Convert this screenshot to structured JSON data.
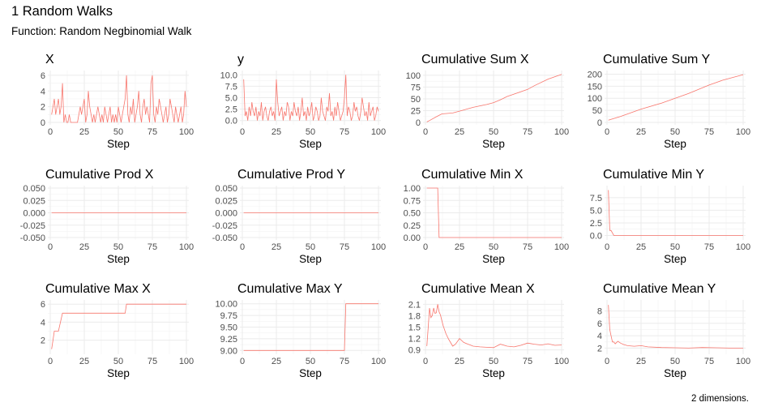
{
  "page": {
    "title": "1 Random Walks",
    "subtitle": "Function: Random Negbinomial Walk",
    "caption": "2 dimensions."
  },
  "chart_data": [
    {
      "type": "line",
      "title": "X",
      "xlabel": "Step",
      "ylabel": "",
      "xlim": [
        0,
        100
      ],
      "ylim": [
        0,
        6.3
      ],
      "xticks": [
        0,
        25,
        50,
        75,
        100
      ],
      "yticks": [
        0,
        2,
        4,
        6
      ],
      "ytick_labels": [
        "0",
        "2",
        "4",
        "6"
      ],
      "color": "#f8766d",
      "grid": true,
      "series": [
        {
          "x": [
            1,
            2,
            3,
            4,
            5,
            6,
            7,
            8,
            9,
            10,
            11,
            12,
            13,
            14,
            15,
            16,
            17,
            18,
            19,
            20,
            21,
            22,
            23,
            24,
            25,
            26,
            27,
            28,
            29,
            30,
            31,
            32,
            33,
            34,
            35,
            36,
            37,
            38,
            39,
            40,
            41,
            42,
            43,
            44,
            45,
            46,
            47,
            48,
            49,
            50,
            51,
            52,
            53,
            54,
            55,
            56,
            57,
            58,
            59,
            60,
            61,
            62,
            63,
            64,
            65,
            66,
            67,
            68,
            69,
            70,
            71,
            72,
            73,
            74,
            75,
            76,
            77,
            78,
            79,
            80,
            81,
            82,
            83,
            84,
            85,
            86,
            87,
            88,
            89,
            90,
            91,
            92,
            93,
            94,
            95,
            96,
            97,
            98,
            99,
            100
          ],
          "y": [
            1,
            2,
            3,
            1,
            2,
            3,
            1,
            2,
            5,
            0,
            1,
            0,
            0,
            1,
            0,
            0,
            0,
            0,
            0,
            0,
            1,
            2,
            1,
            2,
            3,
            0,
            1,
            4,
            2,
            1,
            0,
            1,
            0,
            1,
            2,
            1,
            0,
            1,
            0,
            2,
            1,
            0,
            1,
            2,
            0,
            1,
            0,
            1,
            0,
            2,
            1,
            0,
            1,
            2,
            3,
            6,
            1,
            0,
            2,
            1,
            3,
            0,
            1,
            2,
            4,
            1,
            0,
            2,
            3,
            1,
            2,
            1,
            0,
            5,
            6,
            1,
            0,
            2,
            1,
            3,
            2,
            1,
            0,
            1,
            2,
            0,
            1,
            3,
            2,
            1,
            0,
            2,
            1,
            0,
            1,
            2,
            0,
            1,
            4,
            2
          ]
        }
      ]
    },
    {
      "type": "line",
      "title": "y",
      "xlabel": "Step",
      "ylabel": "",
      "xlim": [
        0,
        100
      ],
      "ylim": [
        -0.4,
        10.4
      ],
      "xticks": [
        0,
        25,
        50,
        75,
        100
      ],
      "yticks": [
        0,
        2.5,
        5,
        7.5,
        10
      ],
      "ytick_labels": [
        "0.0",
        "2.5",
        "5.0",
        "7.5",
        "10.0"
      ],
      "color": "#f8766d",
      "grid": true,
      "series": [
        {
          "x": [
            1,
            2,
            3,
            4,
            5,
            6,
            7,
            8,
            9,
            10,
            11,
            12,
            13,
            14,
            15,
            16,
            17,
            18,
            19,
            20,
            21,
            22,
            23,
            24,
            25,
            26,
            27,
            28,
            29,
            30,
            31,
            32,
            33,
            34,
            35,
            36,
            37,
            38,
            39,
            40,
            41,
            42,
            43,
            44,
            45,
            46,
            47,
            48,
            49,
            50,
            51,
            52,
            53,
            54,
            55,
            56,
            57,
            58,
            59,
            60,
            61,
            62,
            63,
            64,
            65,
            66,
            67,
            68,
            69,
            70,
            71,
            72,
            73,
            74,
            75,
            76,
            77,
            78,
            79,
            80,
            81,
            82,
            83,
            84,
            85,
            86,
            87,
            88,
            89,
            90,
            91,
            92,
            93,
            94,
            95,
            96,
            97,
            98,
            99,
            100
          ],
          "y": [
            9,
            1,
            2,
            0,
            3,
            1,
            4,
            2,
            1,
            3,
            0,
            2,
            1,
            4,
            0,
            2,
            3,
            1,
            0,
            2,
            3,
            1,
            2,
            0,
            9,
            4,
            1,
            2,
            3,
            0,
            2,
            1,
            4,
            3,
            0,
            2,
            1,
            4,
            2,
            1,
            3,
            0,
            2,
            5,
            1,
            2,
            0,
            3,
            1,
            2,
            4,
            0,
            1,
            3,
            2,
            0,
            1,
            5,
            2,
            1,
            0,
            3,
            2,
            6,
            1,
            2,
            0,
            3,
            1,
            4,
            2,
            0,
            1,
            2,
            5,
            10,
            1,
            3,
            2,
            0,
            1,
            4,
            2,
            3,
            1,
            0,
            2,
            5,
            3,
            1,
            2,
            0,
            4,
            1,
            2,
            3,
            0,
            1,
            3,
            2
          ]
        }
      ]
    },
    {
      "type": "line",
      "title": "Cumulative Sum X",
      "xlabel": "Step",
      "ylabel": "",
      "xlim": [
        0,
        100
      ],
      "ylim": [
        0,
        105
      ],
      "xticks": [
        0,
        25,
        50,
        75,
        100
      ],
      "yticks": [
        0,
        25,
        50,
        75,
        100
      ],
      "ytick_labels": [
        "0",
        "25",
        "50",
        "75",
        "100"
      ],
      "color": "#f8766d",
      "grid": true,
      "series": [
        {
          "x": [
            1,
            3,
            8,
            12,
            20,
            25,
            35,
            45,
            50,
            55,
            60,
            65,
            75,
            80,
            90,
            100
          ],
          "y": [
            1,
            4,
            12,
            18,
            20,
            24,
            32,
            38,
            42,
            48,
            55,
            60,
            70,
            78,
            92,
            102
          ]
        }
      ]
    },
    {
      "type": "line",
      "title": "Cumulative Sum Y",
      "xlabel": "Step",
      "ylabel": "",
      "xlim": [
        0,
        100
      ],
      "ylim": [
        0,
        205
      ],
      "xticks": [
        0,
        25,
        50,
        75,
        100
      ],
      "yticks": [
        0,
        50,
        100,
        150,
        200
      ],
      "ytick_labels": [
        "0",
        "50",
        "100",
        "150",
        "200"
      ],
      "color": "#f8766d",
      "grid": true,
      "series": [
        {
          "x": [
            1,
            10,
            25,
            40,
            50,
            60,
            75,
            85,
            100
          ],
          "y": [
            9,
            25,
            55,
            80,
            100,
            120,
            155,
            175,
            198
          ]
        }
      ]
    },
    {
      "type": "line",
      "title": "Cumulative Prod X",
      "xlabel": "Step",
      "ylabel": "",
      "xlim": [
        0,
        100
      ],
      "ylim": [
        -0.05,
        0.05
      ],
      "xticks": [
        0,
        25,
        50,
        75,
        100
      ],
      "yticks": [
        -0.05,
        -0.025,
        0,
        0.025,
        0.05
      ],
      "ytick_labels": [
        "-0.050",
        "-0.025",
        "0.000",
        "0.025",
        "0.050"
      ],
      "color": "#f8766d",
      "grid": true,
      "series": [
        {
          "x": [
            1,
            100
          ],
          "y": [
            0,
            0
          ]
        }
      ]
    },
    {
      "type": "line",
      "title": "Cumulative Prod Y",
      "xlabel": "Step",
      "ylabel": "",
      "xlim": [
        0,
        100
      ],
      "ylim": [
        -0.05,
        0.05
      ],
      "xticks": [
        0,
        25,
        50,
        75,
        100
      ],
      "yticks": [
        -0.05,
        -0.025,
        0,
        0.025,
        0.05
      ],
      "ytick_labels": [
        "-0.050",
        "-0.025",
        "0.000",
        "0.025",
        "0.050"
      ],
      "color": "#f8766d",
      "grid": true,
      "series": [
        {
          "x": [
            1,
            100
          ],
          "y": [
            0,
            0
          ]
        }
      ]
    },
    {
      "type": "line",
      "title": "Cumulative Min X",
      "xlabel": "Step",
      "ylabel": "",
      "xlim": [
        0,
        100
      ],
      "ylim": [
        0,
        1
      ],
      "xticks": [
        0,
        25,
        50,
        75,
        100
      ],
      "yticks": [
        0,
        0.25,
        0.5,
        0.75,
        1
      ],
      "ytick_labels": [
        "0.00",
        "0.25",
        "0.50",
        "0.75",
        "1.00"
      ],
      "color": "#f8766d",
      "grid": true,
      "series": [
        {
          "x": [
            1,
            9,
            10,
            100
          ],
          "y": [
            1,
            1,
            0,
            0
          ]
        }
      ]
    },
    {
      "type": "line",
      "title": "Cumulative Min Y",
      "xlabel": "Step",
      "ylabel": "",
      "xlim": [
        0,
        100
      ],
      "ylim": [
        -0.4,
        9.4
      ],
      "xticks": [
        0,
        25,
        50,
        75,
        100
      ],
      "yticks": [
        0,
        2.5,
        5,
        7.5
      ],
      "ytick_labels": [
        "0.0",
        "2.5",
        "5.0",
        "7.5"
      ],
      "color": "#f8766d",
      "grid": true,
      "series": [
        {
          "x": [
            1,
            2,
            3,
            5,
            100
          ],
          "y": [
            9,
            1,
            1,
            0,
            0
          ]
        }
      ]
    },
    {
      "type": "line",
      "title": "Cumulative Max X",
      "xlabel": "Step",
      "ylabel": "",
      "xlim": [
        0,
        100
      ],
      "ylim": [
        0.7,
        6.2
      ],
      "xticks": [
        0,
        25,
        50,
        75,
        100
      ],
      "yticks": [
        2,
        4,
        6
      ],
      "ytick_labels": [
        "2",
        "4",
        "6"
      ],
      "color": "#f8766d",
      "grid": true,
      "series": [
        {
          "x": [
            1,
            2,
            3,
            5,
            6,
            9,
            10,
            55,
            56,
            100
          ],
          "y": [
            1,
            2,
            3,
            3,
            3,
            5,
            5,
            5,
            6,
            6
          ]
        }
      ]
    },
    {
      "type": "line",
      "title": "Cumulative Max Y",
      "xlabel": "Step",
      "ylabel": "",
      "xlim": [
        0,
        100
      ],
      "ylim": [
        8.97,
        10.03
      ],
      "xticks": [
        0,
        25,
        50,
        75,
        100
      ],
      "yticks": [
        9,
        9.25,
        9.5,
        9.75,
        10
      ],
      "ytick_labels": [
        "9.00",
        "9.25",
        "9.50",
        "9.75",
        "10.00"
      ],
      "color": "#f8766d",
      "grid": true,
      "series": [
        {
          "x": [
            1,
            75,
            76,
            100
          ],
          "y": [
            9,
            9,
            10,
            10
          ]
        }
      ]
    },
    {
      "type": "line",
      "title": "Cumulative Mean X",
      "xlabel": "Step",
      "ylabel": "",
      "xlim": [
        0,
        100
      ],
      "ylim": [
        0.85,
        2.15
      ],
      "xticks": [
        0,
        25,
        50,
        75,
        100
      ],
      "yticks": [
        0.9,
        1.2,
        1.5,
        1.8,
        2.1
      ],
      "ytick_labels": [
        "0.9",
        "1.2",
        "1.5",
        "1.8",
        "2.1"
      ],
      "color": "#f8766d",
      "grid": true,
      "series": [
        {
          "x": [
            1,
            2,
            3,
            4,
            5,
            6,
            7,
            8,
            9,
            10,
            11,
            12,
            13,
            15,
            17,
            20,
            22,
            25,
            28,
            30,
            35,
            40,
            45,
            50,
            55,
            60,
            65,
            70,
            75,
            80,
            85,
            90,
            95,
            100
          ],
          "y": [
            1.0,
            1.5,
            2.0,
            1.75,
            1.8,
            2.0,
            1.86,
            1.88,
            2.1,
            1.9,
            1.82,
            1.67,
            1.54,
            1.33,
            1.18,
            1.0,
            1.05,
            1.2,
            1.1,
            1.07,
            1.0,
            0.98,
            0.97,
            0.96,
            1.05,
            1.0,
            0.98,
            1.02,
            1.08,
            1.05,
            1.03,
            1.06,
            1.02,
            1.03
          ]
        }
      ]
    },
    {
      "type": "line",
      "title": "Cumulative Mean Y",
      "xlabel": "Step",
      "ylabel": "",
      "xlim": [
        0,
        100
      ],
      "ylim": [
        1.4,
        9.4
      ],
      "xticks": [
        0,
        25,
        50,
        75,
        100
      ],
      "yticks": [
        2,
        4,
        6,
        8
      ],
      "ytick_labels": [
        "2",
        "4",
        "6",
        "8"
      ],
      "color": "#f8766d",
      "grid": true,
      "series": [
        {
          "x": [
            1,
            2,
            3,
            4,
            5,
            6,
            8,
            10,
            12,
            15,
            20,
            25,
            30,
            40,
            50,
            60,
            70,
            80,
            90,
            100
          ],
          "y": [
            9,
            5,
            4,
            3,
            3,
            2.7,
            3.1,
            2.8,
            2.6,
            2.4,
            2.3,
            2.4,
            2.2,
            2.1,
            2.05,
            2.0,
            2.1,
            2.05,
            2.0,
            2.0
          ]
        }
      ]
    }
  ]
}
